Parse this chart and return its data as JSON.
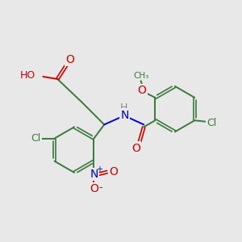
{
  "bg_color": "#e8e8e8",
  "bond_color": "#3a7a3a",
  "red_color": "#cc0000",
  "blue_color": "#0000cc",
  "green_color": "#3a7a3a",
  "gray_color": "#888888",
  "figsize": [
    3.0,
    3.0
  ],
  "dpi": 100,
  "xlim": [
    0,
    10
  ],
  "ylim": [
    0,
    10
  ]
}
